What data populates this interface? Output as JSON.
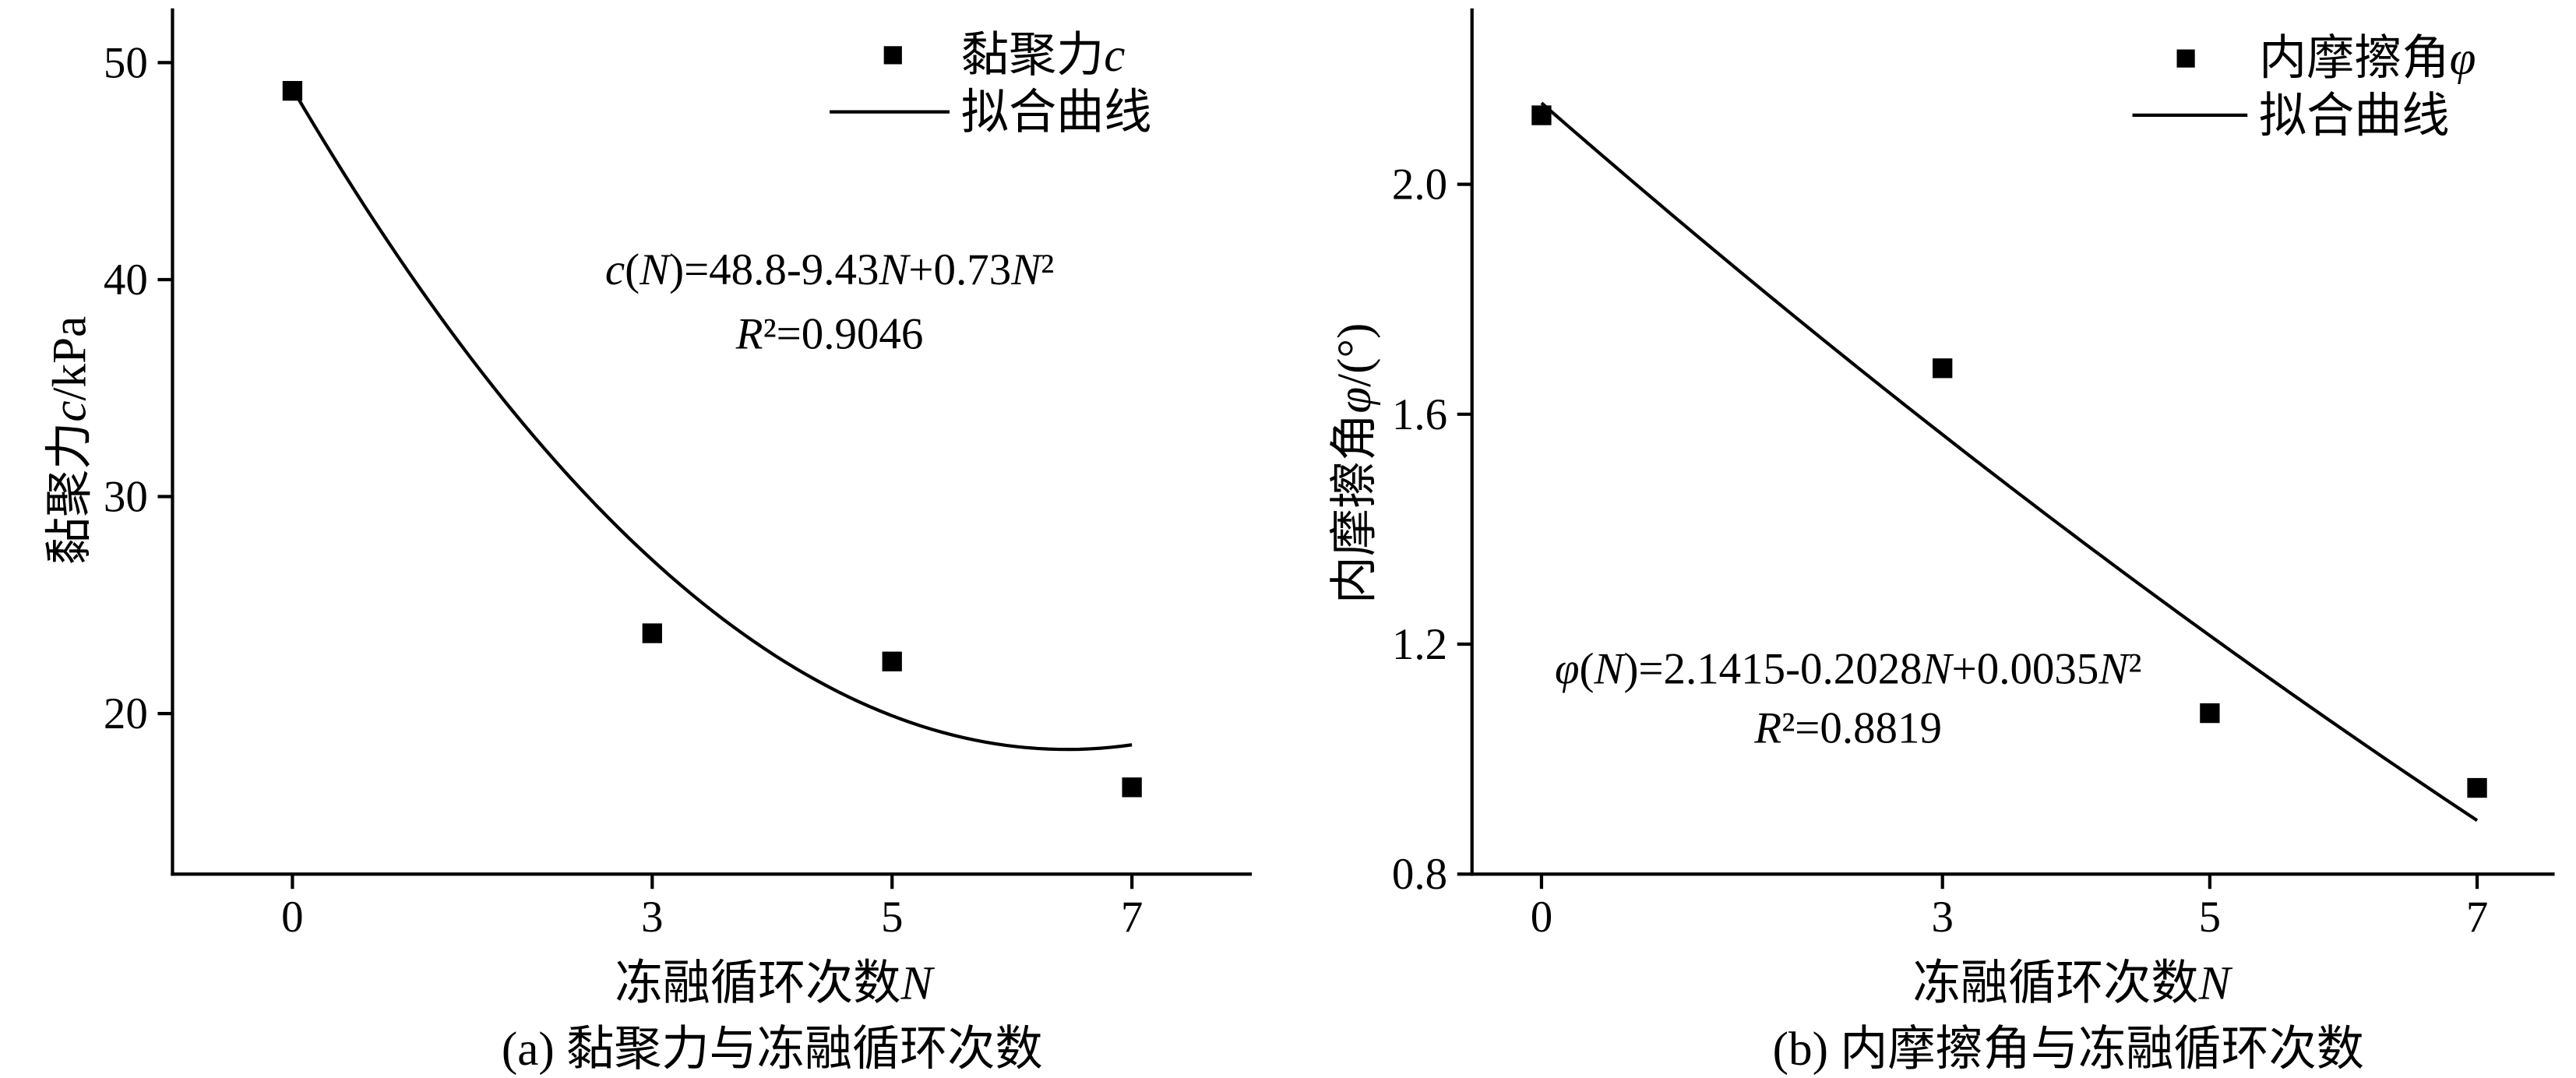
{
  "chart_data": [
    {
      "type": "scatter",
      "caption": "(a) 黏聚力与冻融循环次数",
      "xlabel": "冻融循环次数N",
      "ylabel": "黏聚力c/kPa",
      "xticks": [
        "0",
        "3",
        "5",
        "7"
      ],
      "yticks": [
        "20",
        "30",
        "40",
        "50"
      ],
      "xlim": [
        -1,
        8
      ],
      "ylim": [
        12.6,
        52.5
      ],
      "grid": false,
      "legend": "top-right",
      "series": [
        {
          "name": "黏聚力c",
          "type": "scatter",
          "marker": "square",
          "color": "#000000",
          "x": [
            0,
            3,
            5,
            7
          ],
          "y": [
            48.7,
            23.7,
            22.4,
            16.6
          ]
        },
        {
          "name": "拟合曲线",
          "type": "line",
          "color": "#000000",
          "coefficients": [
            48.8,
            -9.43,
            0.73
          ],
          "x_range": [
            0,
            7
          ]
        }
      ],
      "equation": "c(N)=48.8-9.43N+0.73N²",
      "r2": "R²=0.9046"
    },
    {
      "type": "scatter",
      "caption": "(b) 内摩擦角与冻融循环次数",
      "xlabel": "冻融循环次数N",
      "ylabel": "内摩擦角φ/(°)",
      "xticks": [
        "0",
        "3",
        "5",
        "7"
      ],
      "yticks": [
        "0.8",
        "1.2",
        "1.6",
        "2.0"
      ],
      "xlim": [
        -0.52,
        7.58
      ],
      "ylim": [
        0.8,
        2.306
      ],
      "grid": false,
      "legend": "top-right",
      "series": [
        {
          "name": "内摩擦角φ",
          "type": "scatter",
          "marker": "square",
          "color": "#000000",
          "x": [
            0,
            3,
            5,
            7
          ],
          "y": [
            2.12,
            1.68,
            1.08,
            0.95
          ]
        },
        {
          "name": "拟合曲线",
          "type": "line",
          "color": "#000000",
          "coefficients": [
            2.1415,
            -0.2028,
            0.0035
          ],
          "x_range": [
            0,
            7
          ]
        }
      ],
      "equation": "φ(N)=2.1415-0.2028N+0.0035N²",
      "r2": "R²=0.8819"
    }
  ]
}
